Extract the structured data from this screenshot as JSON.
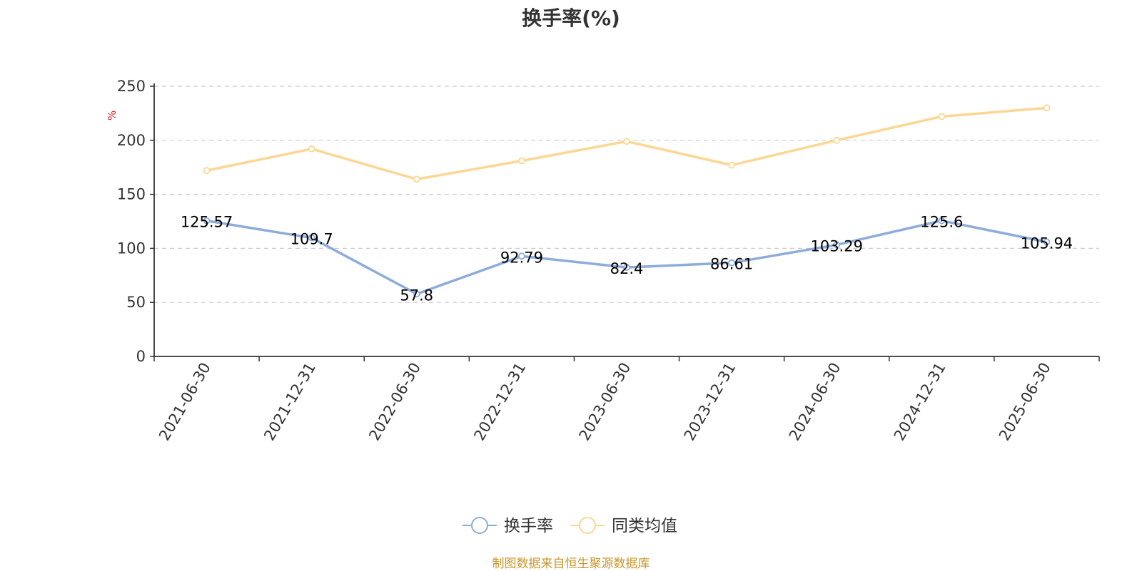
{
  "chart_data": {
    "type": "line",
    "title": "换手率(%)",
    "ylabel": "%",
    "xlabel": "",
    "ylim": [
      0,
      250
    ],
    "yticks": [
      0,
      50,
      100,
      150,
      200,
      250
    ],
    "grid": true,
    "legend_position": "bottom-center",
    "categories": [
      "2021-06-30",
      "2021-12-31",
      "2022-06-30",
      "2022-12-31",
      "2023-06-30",
      "2023-12-31",
      "2024-06-30",
      "2024-12-31",
      "2025-06-30"
    ],
    "series": [
      {
        "name": "换手率",
        "color": "#8eacd9",
        "show_labels": true,
        "values": [
          125.57,
          109.7,
          57.8,
          92.79,
          82.4,
          86.61,
          103.29,
          125.6,
          105.94
        ]
      },
      {
        "name": "同类均值",
        "color": "#fbd793",
        "show_labels": false,
        "values": [
          172,
          192,
          164,
          181,
          199,
          177,
          200,
          222,
          230
        ]
      }
    ]
  },
  "source_text": "制图数据来自恒生聚源数据库",
  "colors": {
    "axis": "#333333",
    "grid": "#cccccc",
    "ylabel": "#e02020",
    "source": "#c8962e"
  }
}
